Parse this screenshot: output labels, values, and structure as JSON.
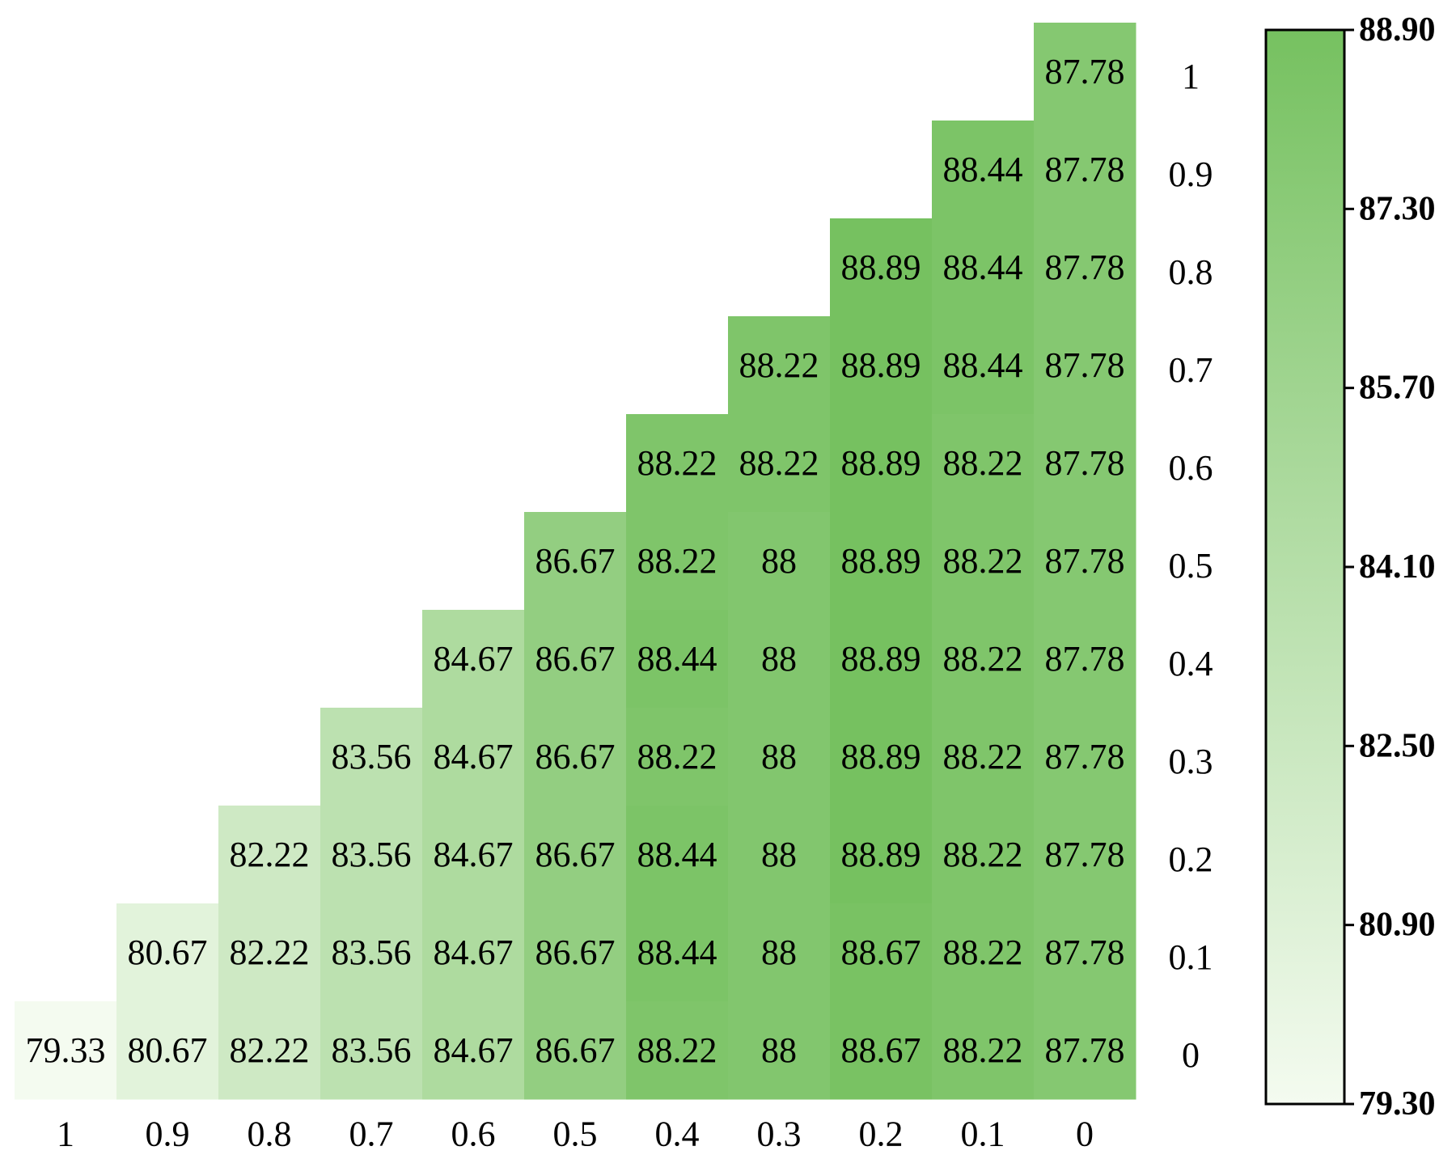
{
  "chart_data": {
    "type": "heatmap",
    "x_categories": [
      "1",
      "0.9",
      "0.8",
      "0.7",
      "0.6",
      "0.5",
      "0.4",
      "0.3",
      "0.2",
      "0.1",
      "0"
    ],
    "y_categories": [
      "1",
      "0.9",
      "0.8",
      "0.7",
      "0.6",
      "0.5",
      "0.4",
      "0.3",
      "0.2",
      "0.1",
      "0"
    ],
    "cells": [
      {
        "row": "1",
        "col": "0",
        "value": 87.78,
        "label": "87.78"
      },
      {
        "row": "0.9",
        "col": "0.1",
        "value": 88.44,
        "label": "88.44"
      },
      {
        "row": "0.9",
        "col": "0",
        "value": 87.78,
        "label": "87.78"
      },
      {
        "row": "0.8",
        "col": "0.2",
        "value": 88.89,
        "label": "88.89"
      },
      {
        "row": "0.8",
        "col": "0.1",
        "value": 88.44,
        "label": "88.44"
      },
      {
        "row": "0.8",
        "col": "0",
        "value": 87.78,
        "label": "87.78"
      },
      {
        "row": "0.7",
        "col": "0.3",
        "value": 88.22,
        "label": "88.22"
      },
      {
        "row": "0.7",
        "col": "0.2",
        "value": 88.89,
        "label": "88.89"
      },
      {
        "row": "0.7",
        "col": "0.1",
        "value": 88.44,
        "label": "88.44"
      },
      {
        "row": "0.7",
        "col": "0",
        "value": 87.78,
        "label": "87.78"
      },
      {
        "row": "0.6",
        "col": "0.4",
        "value": 88.22,
        "label": "88.22"
      },
      {
        "row": "0.6",
        "col": "0.3",
        "value": 88.22,
        "label": "88.22"
      },
      {
        "row": "0.6",
        "col": "0.2",
        "value": 88.89,
        "label": "88.89"
      },
      {
        "row": "0.6",
        "col": "0.1",
        "value": 88.22,
        "label": "88.22"
      },
      {
        "row": "0.6",
        "col": "0",
        "value": 87.78,
        "label": "87.78"
      },
      {
        "row": "0.5",
        "col": "0.5",
        "value": 86.67,
        "label": "86.67"
      },
      {
        "row": "0.5",
        "col": "0.4",
        "value": 88.22,
        "label": "88.22"
      },
      {
        "row": "0.5",
        "col": "0.3",
        "value": 88,
        "label": "88"
      },
      {
        "row": "0.5",
        "col": "0.2",
        "value": 88.89,
        "label": "88.89"
      },
      {
        "row": "0.5",
        "col": "0.1",
        "value": 88.22,
        "label": "88.22"
      },
      {
        "row": "0.5",
        "col": "0",
        "value": 87.78,
        "label": "87.78"
      },
      {
        "row": "0.4",
        "col": "0.6",
        "value": 84.67,
        "label": "84.67"
      },
      {
        "row": "0.4",
        "col": "0.5",
        "value": 86.67,
        "label": "86.67"
      },
      {
        "row": "0.4",
        "col": "0.4",
        "value": 88.44,
        "label": "88.44"
      },
      {
        "row": "0.4",
        "col": "0.3",
        "value": 88,
        "label": "88"
      },
      {
        "row": "0.4",
        "col": "0.2",
        "value": 88.89,
        "label": "88.89"
      },
      {
        "row": "0.4",
        "col": "0.1",
        "value": 88.22,
        "label": "88.22"
      },
      {
        "row": "0.4",
        "col": "0",
        "value": 87.78,
        "label": "87.78"
      },
      {
        "row": "0.3",
        "col": "0.7",
        "value": 83.56,
        "label": "83.56"
      },
      {
        "row": "0.3",
        "col": "0.6",
        "value": 84.67,
        "label": "84.67"
      },
      {
        "row": "0.3",
        "col": "0.5",
        "value": 86.67,
        "label": "86.67"
      },
      {
        "row": "0.3",
        "col": "0.4",
        "value": 88.22,
        "label": "88.22"
      },
      {
        "row": "0.3",
        "col": "0.3",
        "value": 88,
        "label": "88"
      },
      {
        "row": "0.3",
        "col": "0.2",
        "value": 88.89,
        "label": "88.89"
      },
      {
        "row": "0.3",
        "col": "0.1",
        "value": 88.22,
        "label": "88.22"
      },
      {
        "row": "0.3",
        "col": "0",
        "value": 87.78,
        "label": "87.78"
      },
      {
        "row": "0.2",
        "col": "0.8",
        "value": 82.22,
        "label": "82.22"
      },
      {
        "row": "0.2",
        "col": "0.7",
        "value": 83.56,
        "label": "83.56"
      },
      {
        "row": "0.2",
        "col": "0.6",
        "value": 84.67,
        "label": "84.67"
      },
      {
        "row": "0.2",
        "col": "0.5",
        "value": 86.67,
        "label": "86.67"
      },
      {
        "row": "0.2",
        "col": "0.4",
        "value": 88.44,
        "label": "88.44"
      },
      {
        "row": "0.2",
        "col": "0.3",
        "value": 88,
        "label": "88"
      },
      {
        "row": "0.2",
        "col": "0.2",
        "value": 88.89,
        "label": "88.89"
      },
      {
        "row": "0.2",
        "col": "0.1",
        "value": 88.22,
        "label": "88.22"
      },
      {
        "row": "0.2",
        "col": "0",
        "value": 87.78,
        "label": "87.78"
      },
      {
        "row": "0.1",
        "col": "0.9",
        "value": 80.67,
        "label": "80.67"
      },
      {
        "row": "0.1",
        "col": "0.8",
        "value": 82.22,
        "label": "82.22"
      },
      {
        "row": "0.1",
        "col": "0.7",
        "value": 83.56,
        "label": "83.56"
      },
      {
        "row": "0.1",
        "col": "0.6",
        "value": 84.67,
        "label": "84.67"
      },
      {
        "row": "0.1",
        "col": "0.5",
        "value": 86.67,
        "label": "86.67"
      },
      {
        "row": "0.1",
        "col": "0.4",
        "value": 88.44,
        "label": "88.44"
      },
      {
        "row": "0.1",
        "col": "0.3",
        "value": 88,
        "label": "88"
      },
      {
        "row": "0.1",
        "col": "0.2",
        "value": 88.67,
        "label": "88.67"
      },
      {
        "row": "0.1",
        "col": "0.1",
        "value": 88.22,
        "label": "88.22"
      },
      {
        "row": "0.1",
        "col": "0",
        "value": 87.78,
        "label": "87.78"
      },
      {
        "row": "0",
        "col": "1",
        "value": 79.33,
        "label": "79.33"
      },
      {
        "row": "0",
        "col": "0.9",
        "value": 80.67,
        "label": "80.67"
      },
      {
        "row": "0",
        "col": "0.8",
        "value": 82.22,
        "label": "82.22"
      },
      {
        "row": "0",
        "col": "0.7",
        "value": 83.56,
        "label": "83.56"
      },
      {
        "row": "0",
        "col": "0.6",
        "value": 84.67,
        "label": "84.67"
      },
      {
        "row": "0",
        "col": "0.5",
        "value": 86.67,
        "label": "86.67"
      },
      {
        "row": "0",
        "col": "0.4",
        "value": 88.22,
        "label": "88.22"
      },
      {
        "row": "0",
        "col": "0.3",
        "value": 88,
        "label": "88"
      },
      {
        "row": "0",
        "col": "0.2",
        "value": 88.67,
        "label": "88.67"
      },
      {
        "row": "0",
        "col": "0.1",
        "value": 88.22,
        "label": "88.22"
      },
      {
        "row": "0",
        "col": "0",
        "value": 87.78,
        "label": "87.78"
      }
    ],
    "colorbar": {
      "min": 79.3,
      "max": 88.9,
      "ticks": [
        "79.30",
        "80.90",
        "82.50",
        "84.10",
        "85.70",
        "87.30",
        "88.90"
      ],
      "color_low": "#f4fbf0",
      "color_high": "#76c160"
    },
    "y_axis_position": "right",
    "legend": "colorbar-right",
    "grid": false
  }
}
